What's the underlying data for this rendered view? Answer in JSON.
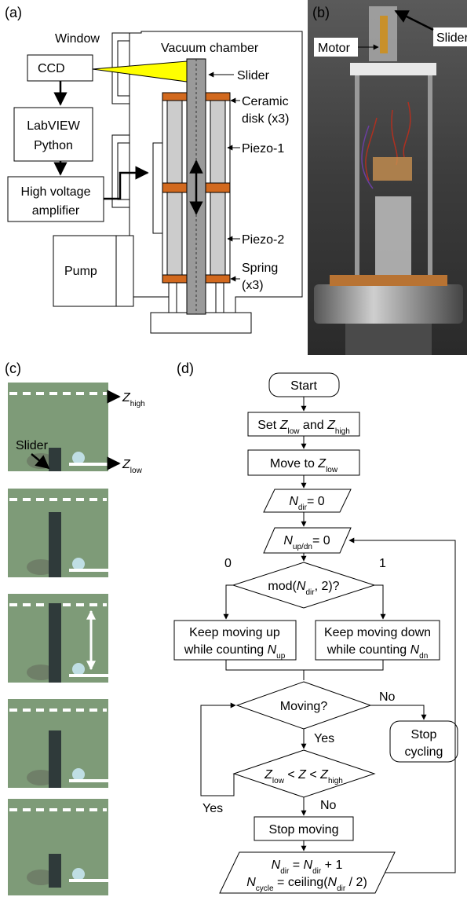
{
  "panel_a": {
    "label": "(a)",
    "window": "Window",
    "vacuum_chamber": "Vacuum chamber",
    "ccd": "CCD",
    "labview": [
      "LabVIEW",
      "Python"
    ],
    "amplifier": [
      "High voltage",
      "amplifier"
    ],
    "pump": "Pump",
    "slider": "Slider",
    "ceramic": [
      "Ceramic",
      "disk (x3)"
    ],
    "piezo1": "Piezo-1",
    "piezo2": "Piezo-2",
    "spring": [
      "Spring",
      "(x3)"
    ]
  },
  "panel_b": {
    "label": "(b)",
    "motor": "Motor",
    "slider": "Slider"
  },
  "panel_c": {
    "label": "(c)",
    "slider": "Slider",
    "z_high": [
      "Z",
      "high"
    ],
    "z_low": [
      "Z",
      "low"
    ]
  },
  "panel_d": {
    "label": "(d)",
    "start": "Start",
    "set": [
      "Set ",
      "Z",
      "low",
      " and ",
      "Z",
      "high"
    ],
    "move": [
      "Move to ",
      "Z",
      "low"
    ],
    "init_dir": [
      "N",
      "dir",
      "= 0"
    ],
    "init_count": [
      "N",
      "up/dn",
      "= 0"
    ],
    "mod": [
      "mod(",
      "N",
      "dir",
      ", 2)?"
    ],
    "branch0": "0",
    "branch1": "1",
    "up": [
      "Keep moving up",
      "while counting ",
      "N",
      "up"
    ],
    "down": [
      "Keep moving down",
      "while counting ",
      "N",
      "dn"
    ],
    "moving": "Moving?",
    "no1": "No",
    "yes1": "Yes",
    "stop_cycling": [
      "Stop",
      "cycling"
    ],
    "range": [
      "Z",
      "low",
      " < ",
      "Z",
      " < ",
      "Z",
      "high"
    ],
    "yes2": "Yes",
    "no2": "No",
    "stop_moving": "Stop moving",
    "update_line1": [
      "N",
      "dir",
      " = ",
      "N",
      "dir",
      " + 1"
    ],
    "update_line2": [
      "N",
      "cycle",
      " = ceiling(",
      "N",
      "dir",
      " / 2)"
    ]
  }
}
